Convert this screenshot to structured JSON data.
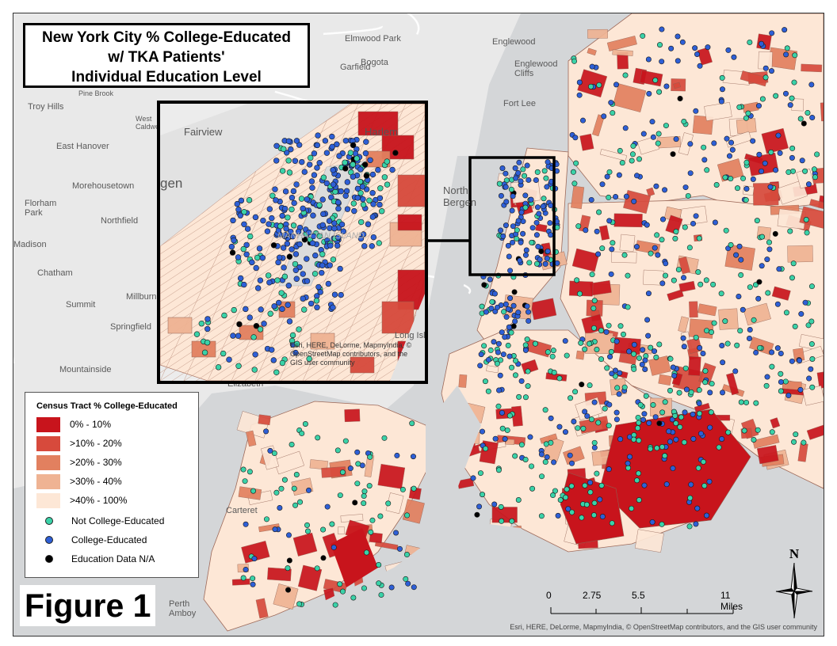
{
  "map": {
    "title_lines": [
      "New York City % College-Educated",
      "w/ TKA Patients'",
      "Individual Education Level"
    ],
    "figure_label": "Figure 1",
    "place_labels": [
      "Elmwood Park",
      "Englewood",
      "Bogota",
      "Garfield",
      "Englewood Cliffs",
      "Fort Lee",
      "Troy Hills",
      "East Hanover",
      "Morehousetown",
      "Florham Park",
      "Northfield",
      "Chatham",
      "Summit",
      "Millburn",
      "Springfield",
      "Mountainside",
      "North Bergen",
      "Fairview",
      "Madison",
      "Elizabeth",
      "Carteret",
      "Perth Amboy",
      "Pine Brook",
      "West Caldwell"
    ],
    "inset_labels": [
      "Fairview",
      "gen",
      "Harlem",
      "Long Island City",
      "MANHATTAN ISLAND"
    ],
    "inset_attribution": "Esri, HERE, DeLorme, MapmyIndia, © OpenStreetMap contributors, and the GIS user community",
    "attribution": "Esri, HERE, DeLorme, MapmyIndia, © OpenStreetMap contributors, and the GIS user community"
  },
  "legend": {
    "title": "Census Tract % College-Educated",
    "classes": [
      {
        "label": "0% - 10%",
        "color": "#c8141c"
      },
      {
        "label": ">10% - 20%",
        "color": "#d74a3c"
      },
      {
        "label": ">20% - 30%",
        "color": "#e2805f"
      },
      {
        "label": ">30% - 40%",
        "color": "#efb393"
      },
      {
        "label": ">40% - 100%",
        "color": "#fde7d6"
      }
    ],
    "points": [
      {
        "label": "Not College-Educated",
        "color": "#3ad2a8"
      },
      {
        "label": "College-Educated",
        "color": "#2e5fd6"
      },
      {
        "label": "Education Data N/A",
        "color": "#000000"
      }
    ]
  },
  "scale": {
    "ticks": [
      "0",
      "2.75",
      "5.5",
      "11 Miles"
    ]
  },
  "north_label": "N"
}
